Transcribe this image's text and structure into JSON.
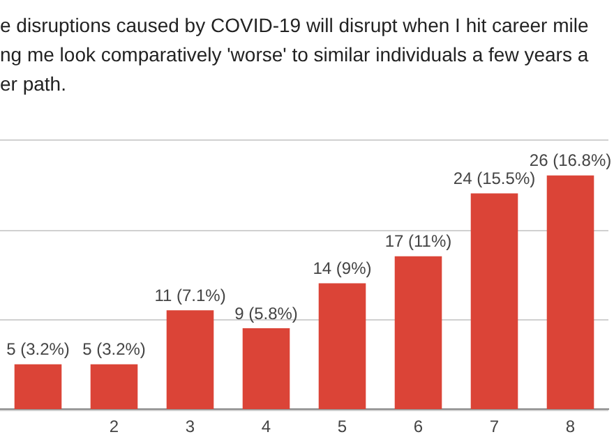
{
  "chart_data": {
    "type": "bar",
    "title": "e disruptions caused by COVID-19 will disrupt when I hit career mile\nng me look comparatively 'worse' to similar individuals a few years a\ner path.",
    "categories": [
      null,
      "2",
      "3",
      "4",
      "5",
      "6",
      "7",
      "8"
    ],
    "values": [
      5,
      5,
      11,
      9,
      14,
      17,
      24,
      26
    ],
    "value_labels": [
      "5 (3.2%)",
      "5 (3.2%)",
      "11 (7.1%)",
      "9 (5.8%)",
      "14 (9%)",
      "17 (11%)",
      "24 (15.5%)",
      "26 (16.8%)"
    ],
    "color": "#db4437",
    "ylim": [
      0,
      30
    ],
    "yticks": [
      {
        "value": 0,
        "label": null
      },
      {
        "value": 10,
        "label": null
      },
      {
        "value": 20,
        "label": null
      },
      {
        "value": 30,
        "label": null
      }
    ],
    "tick_labels": "x",
    "grid": "y"
  }
}
